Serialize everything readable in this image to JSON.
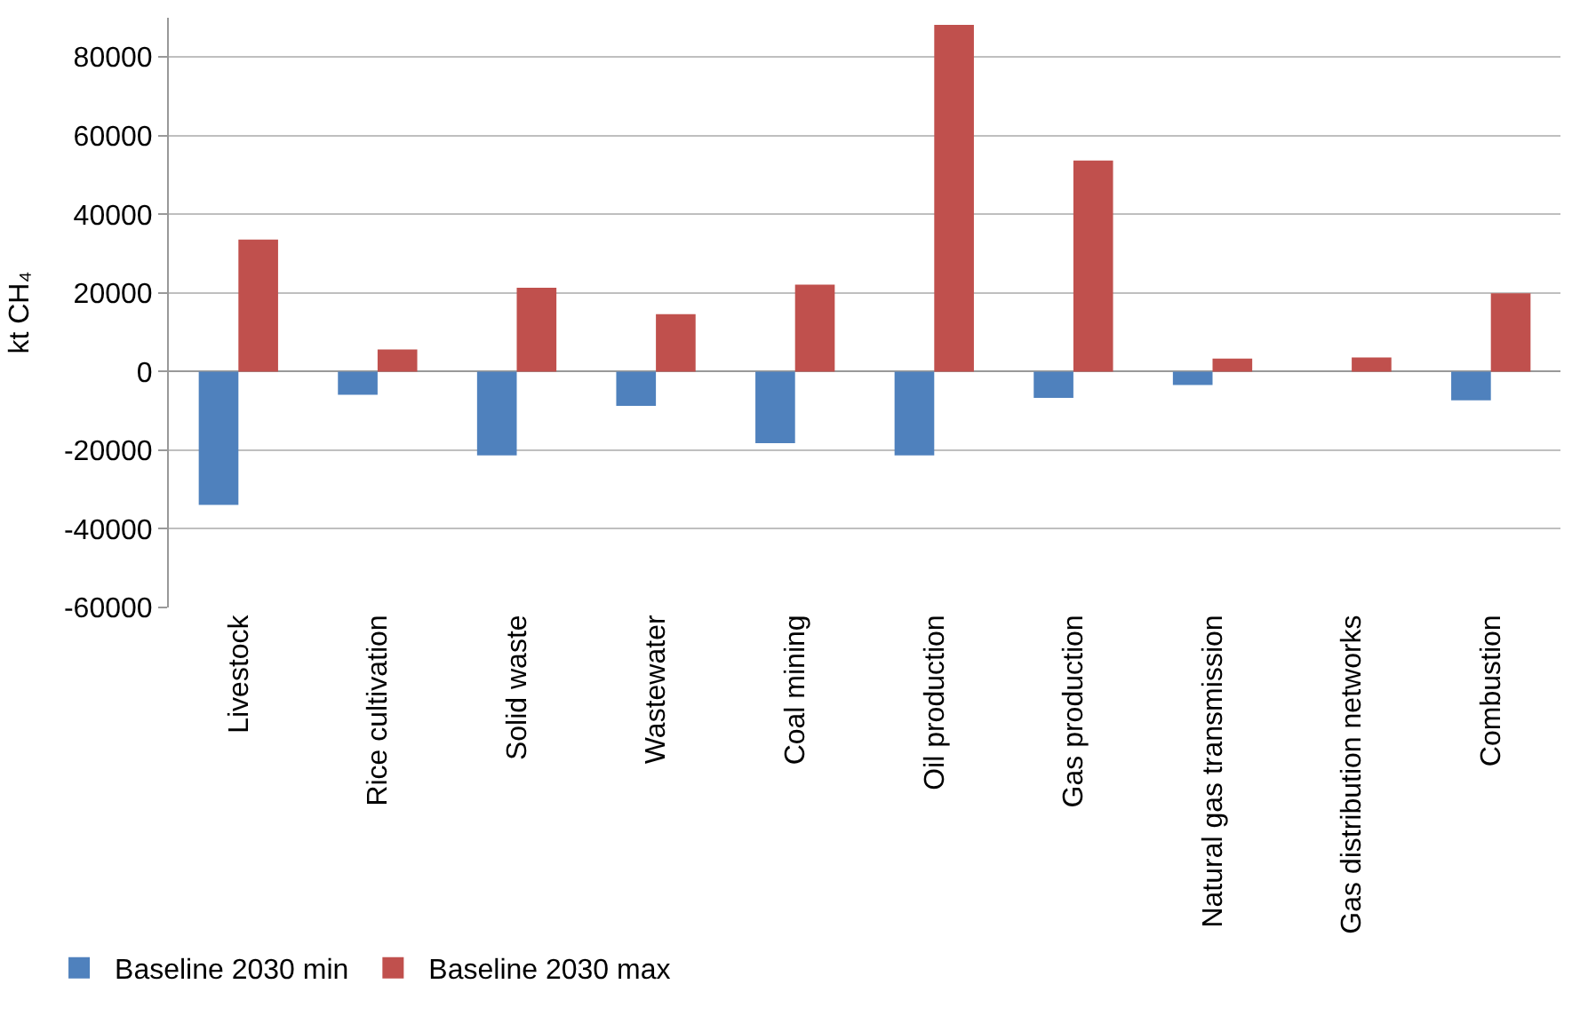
{
  "chart_data": {
    "type": "bar",
    "ylabel": "kt CH₄",
    "categories": [
      "Livestock",
      "Rice cultivation",
      "Solid waste",
      "Wastewater",
      "Coal mining",
      "Oil production",
      "Gas production",
      "Natural gas transmission",
      "Gas distribution networks",
      "Combustion"
    ],
    "series": [
      {
        "name": "Baseline 2030 min",
        "color": "#4f81bd",
        "values": [
          -33900,
          -5900,
          -21300,
          -8700,
          -18200,
          -21300,
          -6700,
          -3400,
          0,
          -7300
        ]
      },
      {
        "name": "Baseline 2030 max",
        "color": "#c0504d",
        "values": [
          33600,
          5600,
          21300,
          14600,
          22100,
          88200,
          53700,
          3300,
          3600,
          19900
        ]
      }
    ],
    "ylim": [
      -60000,
      90000
    ],
    "yticks": [
      -60000,
      -40000,
      -20000,
      0,
      20000,
      40000,
      60000,
      80000
    ],
    "grid": "y",
    "legend": "bottom left"
  }
}
